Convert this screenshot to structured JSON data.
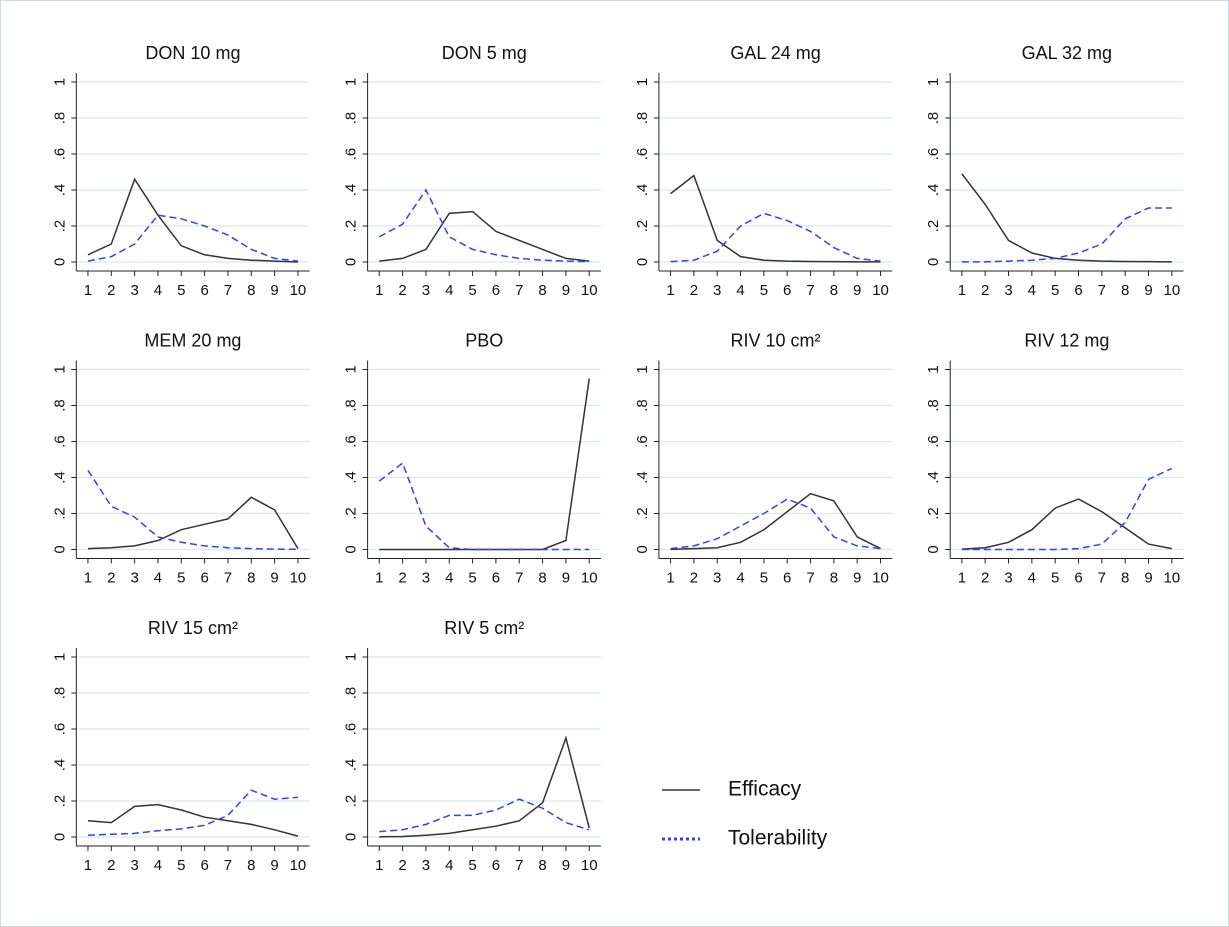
{
  "chart_data": [
    {
      "type": "line",
      "title": "DON 10 mg",
      "x": [
        1,
        2,
        3,
        4,
        5,
        6,
        7,
        8,
        9,
        10
      ],
      "xlim": [
        0.5,
        10.5
      ],
      "xticks": [
        1,
        2,
        3,
        4,
        5,
        6,
        7,
        8,
        9,
        10
      ],
      "ylim": [
        -0.05,
        1.05
      ],
      "yticks": [
        0,
        {
          "value": 0.2,
          "label": ".2"
        },
        {
          "value": 0.4,
          "label": ".4"
        },
        {
          "value": 0.6,
          "label": ".6"
        },
        {
          "value": 0.8,
          "label": ".8"
        },
        1
      ],
      "grid": true,
      "series": [
        {
          "name": "Efficacy",
          "color": "#333333",
          "dash": "solid",
          "values": [
            0.04,
            0.1,
            0.46,
            0.26,
            0.09,
            0.04,
            0.02,
            0.01,
            0.005,
            0
          ]
        },
        {
          "name": "Tolerability",
          "color": "#3b3bff",
          "dash": "dashed",
          "values": [
            0.005,
            0.03,
            0.1,
            0.26,
            0.24,
            0.2,
            0.15,
            0.07,
            0.02,
            0.005
          ]
        }
      ]
    },
    {
      "type": "line",
      "title": "DON 5 mg",
      "x": [
        1,
        2,
        3,
        4,
        5,
        6,
        7,
        8,
        9,
        10
      ],
      "xlim": [
        0.5,
        10.5
      ],
      "xticks": [
        1,
        2,
        3,
        4,
        5,
        6,
        7,
        8,
        9,
        10
      ],
      "ylim": [
        -0.05,
        1.05
      ],
      "yticks": [
        0,
        {
          "value": 0.2,
          "label": ".2"
        },
        {
          "value": 0.4,
          "label": ".4"
        },
        {
          "value": 0.6,
          "label": ".6"
        },
        {
          "value": 0.8,
          "label": ".8"
        },
        1
      ],
      "grid": true,
      "series": [
        {
          "name": "Efficacy",
          "color": "#333333",
          "dash": "solid",
          "values": [
            0.005,
            0.02,
            0.07,
            0.27,
            0.28,
            0.17,
            0.12,
            0.07,
            0.02,
            0.005
          ]
        },
        {
          "name": "Tolerability",
          "color": "#3b3bff",
          "dash": "dashed",
          "values": [
            0.14,
            0.21,
            0.4,
            0.14,
            0.07,
            0.04,
            0.02,
            0.01,
            0.005,
            0.002
          ]
        }
      ]
    },
    {
      "type": "line",
      "title": "GAL 24 mg",
      "x": [
        1,
        2,
        3,
        4,
        5,
        6,
        7,
        8,
        9,
        10
      ],
      "xlim": [
        0.5,
        10.5
      ],
      "xticks": [
        1,
        2,
        3,
        4,
        5,
        6,
        7,
        8,
        9,
        10
      ],
      "ylim": [
        -0.05,
        1.05
      ],
      "yticks": [
        0,
        {
          "value": 0.2,
          "label": ".2"
        },
        {
          "value": 0.4,
          "label": ".4"
        },
        {
          "value": 0.6,
          "label": ".6"
        },
        {
          "value": 0.8,
          "label": ".8"
        },
        1
      ],
      "grid": true,
      "series": [
        {
          "name": "Efficacy",
          "color": "#333333",
          "dash": "solid",
          "values": [
            0.38,
            0.48,
            0.12,
            0.03,
            0.01,
            0.005,
            0.003,
            0.002,
            0.001,
            0.001
          ]
        },
        {
          "name": "Tolerability",
          "color": "#3b3bff",
          "dash": "dashed",
          "values": [
            0.002,
            0.01,
            0.06,
            0.2,
            0.27,
            0.23,
            0.17,
            0.08,
            0.02,
            0.005
          ]
        }
      ]
    },
    {
      "type": "line",
      "title": "GAL 32 mg",
      "x": [
        1,
        2,
        3,
        4,
        5,
        6,
        7,
        8,
        9,
        10
      ],
      "xlim": [
        0.5,
        10.5
      ],
      "xticks": [
        1,
        2,
        3,
        4,
        5,
        6,
        7,
        8,
        9,
        10
      ],
      "ylim": [
        -0.05,
        1.05
      ],
      "yticks": [
        0,
        {
          "value": 0.2,
          "label": ".2"
        },
        {
          "value": 0.4,
          "label": ".4"
        },
        {
          "value": 0.6,
          "label": ".6"
        },
        {
          "value": 0.8,
          "label": ".8"
        },
        1
      ],
      "grid": true,
      "series": [
        {
          "name": "Efficacy",
          "color": "#333333",
          "dash": "solid",
          "values": [
            0.49,
            0.32,
            0.12,
            0.05,
            0.02,
            0.01,
            0.005,
            0.003,
            0.002,
            0.001
          ]
        },
        {
          "name": "Tolerability",
          "color": "#3b3bff",
          "dash": "dashed",
          "values": [
            0.001,
            0.001,
            0.005,
            0.01,
            0.02,
            0.05,
            0.1,
            0.24,
            0.3,
            0.3
          ]
        }
      ]
    },
    {
      "type": "line",
      "title": "MEM 20 mg",
      "x": [
        1,
        2,
        3,
        4,
        5,
        6,
        7,
        8,
        9,
        10
      ],
      "xlim": [
        0.5,
        10.5
      ],
      "xticks": [
        1,
        2,
        3,
        4,
        5,
        6,
        7,
        8,
        9,
        10
      ],
      "ylim": [
        -0.05,
        1.05
      ],
      "yticks": [
        0,
        {
          "value": 0.2,
          "label": ".2"
        },
        {
          "value": 0.4,
          "label": ".4"
        },
        {
          "value": 0.6,
          "label": ".6"
        },
        {
          "value": 0.8,
          "label": ".8"
        },
        1
      ],
      "grid": true,
      "series": [
        {
          "name": "Efficacy",
          "color": "#333333",
          "dash": "solid",
          "values": [
            0.005,
            0.01,
            0.02,
            0.05,
            0.11,
            0.14,
            0.17,
            0.29,
            0.22,
            0.005
          ]
        },
        {
          "name": "Tolerability",
          "color": "#3b3bff",
          "dash": "dashed",
          "values": [
            0.44,
            0.24,
            0.18,
            0.07,
            0.04,
            0.02,
            0.01,
            0.005,
            0.002,
            0.001
          ]
        }
      ]
    },
    {
      "type": "line",
      "title": "PBO",
      "x": [
        1,
        2,
        3,
        4,
        5,
        6,
        7,
        8,
        9,
        10
      ],
      "xlim": [
        0.5,
        10.5
      ],
      "xticks": [
        1,
        2,
        3,
        4,
        5,
        6,
        7,
        8,
        9,
        10
      ],
      "ylim": [
        -0.05,
        1.05
      ],
      "yticks": [
        0,
        {
          "value": 0.2,
          "label": ".2"
        },
        {
          "value": 0.4,
          "label": ".4"
        },
        {
          "value": 0.6,
          "label": ".6"
        },
        {
          "value": 0.8,
          "label": ".8"
        },
        1
      ],
      "grid": true,
      "series": [
        {
          "name": "Efficacy",
          "color": "#333333",
          "dash": "solid",
          "values": [
            0,
            0,
            0,
            0,
            0,
            0,
            0,
            0,
            0.05,
            0.95
          ]
        },
        {
          "name": "Tolerability",
          "color": "#3b3bff",
          "dash": "dashed",
          "values": [
            0.38,
            0.48,
            0.13,
            0.01,
            0,
            0,
            0,
            0,
            0,
            0
          ]
        }
      ]
    },
    {
      "type": "line",
      "title": "RIV 10 cm²",
      "x": [
        1,
        2,
        3,
        4,
        5,
        6,
        7,
        8,
        9,
        10
      ],
      "xlim": [
        0.5,
        10.5
      ],
      "xticks": [
        1,
        2,
        3,
        4,
        5,
        6,
        7,
        8,
        9,
        10
      ],
      "ylim": [
        -0.05,
        1.05
      ],
      "yticks": [
        0,
        {
          "value": 0.2,
          "label": ".2"
        },
        {
          "value": 0.4,
          "label": ".4"
        },
        {
          "value": 0.6,
          "label": ".6"
        },
        {
          "value": 0.8,
          "label": ".8"
        },
        1
      ],
      "grid": true,
      "series": [
        {
          "name": "Efficacy",
          "color": "#333333",
          "dash": "solid",
          "values": [
            0.001,
            0.005,
            0.01,
            0.04,
            0.11,
            0.21,
            0.31,
            0.27,
            0.07,
            0.005
          ]
        },
        {
          "name": "Tolerability",
          "color": "#3b3bff",
          "dash": "dashed",
          "values": [
            0.005,
            0.02,
            0.06,
            0.13,
            0.2,
            0.28,
            0.23,
            0.07,
            0.02,
            0.005
          ]
        }
      ]
    },
    {
      "type": "line",
      "title": "RIV 12 mg",
      "x": [
        1,
        2,
        3,
        4,
        5,
        6,
        7,
        8,
        9,
        10
      ],
      "xlim": [
        0.5,
        10.5
      ],
      "xticks": [
        1,
        2,
        3,
        4,
        5,
        6,
        7,
        8,
        9,
        10
      ],
      "ylim": [
        -0.05,
        1.05
      ],
      "yticks": [
        0,
        {
          "value": 0.2,
          "label": ".2"
        },
        {
          "value": 0.4,
          "label": ".4"
        },
        {
          "value": 0.6,
          "label": ".6"
        },
        {
          "value": 0.8,
          "label": ".8"
        },
        1
      ],
      "grid": true,
      "series": [
        {
          "name": "Efficacy",
          "color": "#333333",
          "dash": "solid",
          "values": [
            0.002,
            0.01,
            0.04,
            0.11,
            0.23,
            0.28,
            0.21,
            0.12,
            0.03,
            0.005
          ]
        },
        {
          "name": "Tolerability",
          "color": "#3b3bff",
          "dash": "dashed",
          "values": [
            0,
            0,
            0,
            0,
            0,
            0.005,
            0.03,
            0.15,
            0.39,
            0.45
          ]
        }
      ]
    },
    {
      "type": "line",
      "title": "RIV 15 cm²",
      "x": [
        1,
        2,
        3,
        4,
        5,
        6,
        7,
        8,
        9,
        10
      ],
      "xlim": [
        0.5,
        10.5
      ],
      "xticks": [
        1,
        2,
        3,
        4,
        5,
        6,
        7,
        8,
        9,
        10
      ],
      "ylim": [
        -0.05,
        1.05
      ],
      "yticks": [
        0,
        {
          "value": 0.2,
          "label": ".2"
        },
        {
          "value": 0.4,
          "label": ".4"
        },
        {
          "value": 0.6,
          "label": ".6"
        },
        {
          "value": 0.8,
          "label": ".8"
        },
        1
      ],
      "grid": true,
      "series": [
        {
          "name": "Efficacy",
          "color": "#333333",
          "dash": "solid",
          "values": [
            0.09,
            0.08,
            0.17,
            0.18,
            0.15,
            0.11,
            0.09,
            0.07,
            0.04,
            0.005
          ]
        },
        {
          "name": "Tolerability",
          "color": "#3b3bff",
          "dash": "dashed",
          "values": [
            0.01,
            0.015,
            0.02,
            0.035,
            0.045,
            0.065,
            0.12,
            0.26,
            0.21,
            0.22
          ]
        }
      ]
    },
    {
      "type": "line",
      "title": "RIV 5 cm²",
      "x": [
        1,
        2,
        3,
        4,
        5,
        6,
        7,
        8,
        9,
        10
      ],
      "xlim": [
        0.5,
        10.5
      ],
      "xticks": [
        1,
        2,
        3,
        4,
        5,
        6,
        7,
        8,
        9,
        10
      ],
      "ylim": [
        -0.05,
        1.05
      ],
      "yticks": [
        0,
        {
          "value": 0.2,
          "label": ".2"
        },
        {
          "value": 0.4,
          "label": ".4"
        },
        {
          "value": 0.6,
          "label": ".6"
        },
        {
          "value": 0.8,
          "label": ".8"
        },
        1
      ],
      "grid": true,
      "series": [
        {
          "name": "Efficacy",
          "color": "#333333",
          "dash": "solid",
          "values": [
            0.001,
            0.003,
            0.01,
            0.02,
            0.04,
            0.06,
            0.09,
            0.19,
            0.55,
            0.05
          ]
        },
        {
          "name": "Tolerability",
          "color": "#3b3bff",
          "dash": "dashed",
          "values": [
            0.03,
            0.04,
            0.07,
            0.12,
            0.12,
            0.15,
            0.21,
            0.16,
            0.08,
            0.04
          ]
        }
      ]
    }
  ]
}
